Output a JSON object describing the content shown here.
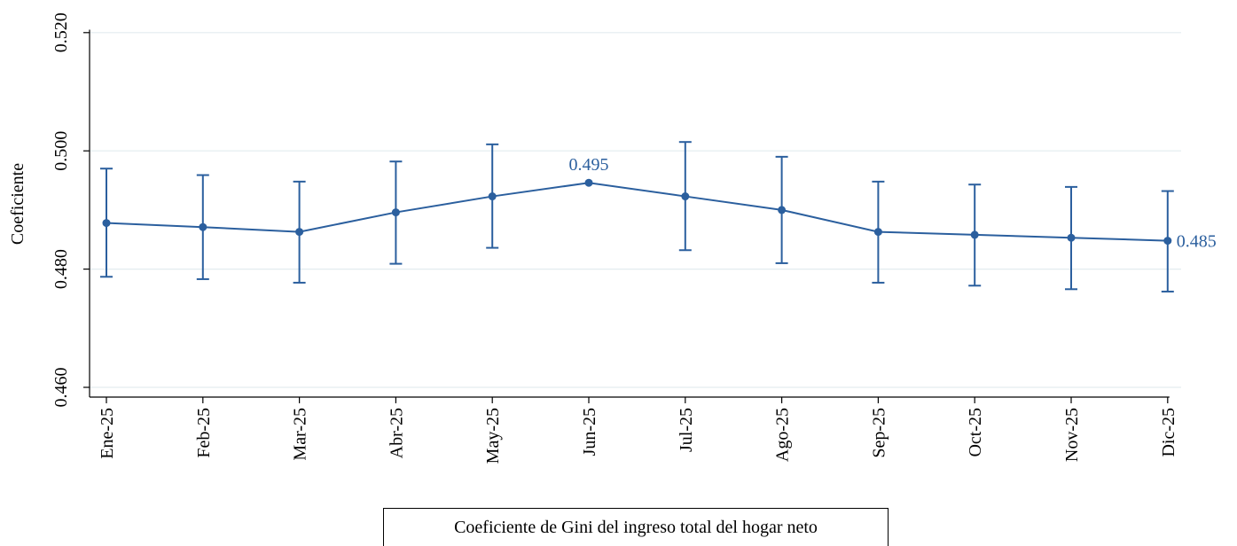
{
  "chart_data": {
    "type": "line",
    "ylabel": "Coeficiente",
    "xlabel": "",
    "categories": [
      "Ene-25",
      "Feb-25",
      "Mar-25",
      "Abr-25",
      "May-25",
      "Jun-25",
      "Jul-25",
      "Ago-25",
      "Sep-25",
      "Oct-25",
      "Nov-25",
      "Dic-25"
    ],
    "yticks": [
      "0.460",
      "0.480",
      "0.500",
      "0.520"
    ],
    "ylim": [
      0.458,
      0.5205
    ],
    "grid": "horizontal",
    "series": [
      {
        "name": "Coeficiente de Gini del ingreso total del hogar neto",
        "color": "#2b5f9e",
        "values": [
          0.4878,
          0.4871,
          0.4863,
          0.4896,
          0.4923,
          0.4946,
          0.4923,
          0.49,
          0.4863,
          0.4858,
          0.4853,
          0.4848
        ],
        "lower": [
          0.4787,
          0.4783,
          0.4777,
          0.4809,
          0.4836,
          null,
          0.4832,
          0.481,
          0.4777,
          0.4772,
          0.4766,
          0.4762
        ],
        "upper": [
          0.497,
          0.4959,
          0.4948,
          0.4982,
          0.5011,
          null,
          0.5015,
          0.499,
          0.4948,
          0.4943,
          0.4939,
          0.4932
        ]
      }
    ],
    "annotations": [
      {
        "category": "Jun-25",
        "text": "0.495"
      },
      {
        "category": "Dic-25",
        "text": "0.485"
      }
    ],
    "legend": {
      "position": "bottom"
    }
  }
}
